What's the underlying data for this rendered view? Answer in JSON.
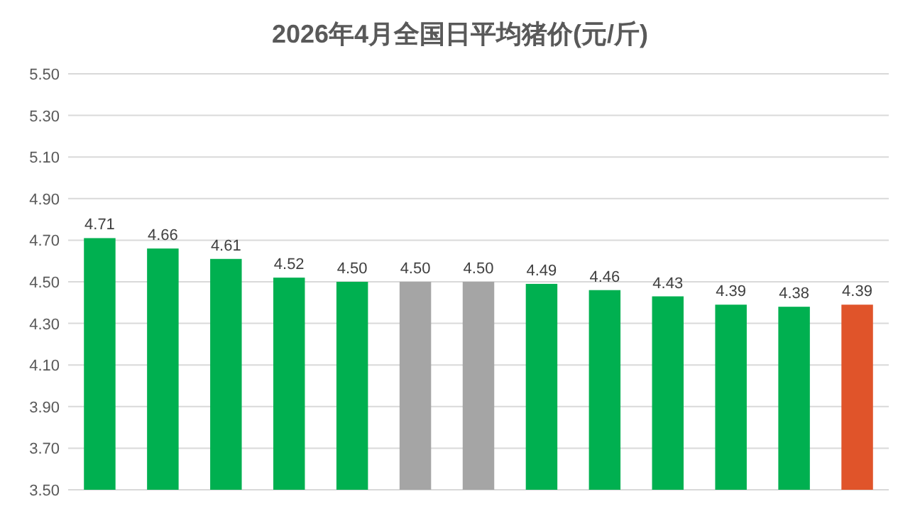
{
  "chart_data": {
    "type": "bar",
    "title": "2026年4月全国日平均猪价(元/斤)",
    "categories": [
      null,
      null,
      null,
      null,
      null,
      null,
      null,
      null,
      null,
      null,
      null,
      null,
      null
    ],
    "values": [
      4.71,
      4.66,
      4.61,
      4.52,
      4.5,
      4.5,
      4.5,
      4.49,
      4.46,
      4.43,
      4.39,
      4.38,
      4.39
    ],
    "colors": [
      "#00b050",
      "#00b050",
      "#00b050",
      "#00b050",
      "#00b050",
      "#a5a5a5",
      "#a5a5a5",
      "#00b050",
      "#00b050",
      "#00b050",
      "#00b050",
      "#00b050",
      "#e0542a"
    ],
    "value_labels": [
      "4.71",
      "4.66",
      "4.61",
      "4.52",
      "4.50",
      "4.50",
      "4.50",
      "4.49",
      "4.46",
      "4.43",
      "4.39",
      "4.38",
      "4.39"
    ],
    "ylim": [
      3.5,
      5.5
    ],
    "yticks": [
      {
        "value": 3.5,
        "label": "3.50"
      },
      {
        "value": 3.7,
        "label": "3.70"
      },
      {
        "value": 3.9,
        "label": "3.90"
      },
      {
        "value": 4.1,
        "label": "4.10"
      },
      {
        "value": 4.3,
        "label": "4.30"
      },
      {
        "value": 4.5,
        "label": "4.50"
      },
      {
        "value": 4.7,
        "label": "4.70"
      },
      {
        "value": 4.9,
        "label": "4.90"
      },
      {
        "value": 5.1,
        "label": "5.10"
      },
      {
        "value": 5.3,
        "label": "5.30"
      },
      {
        "value": 5.5,
        "label": "5.50"
      }
    ],
    "grid": "y"
  }
}
